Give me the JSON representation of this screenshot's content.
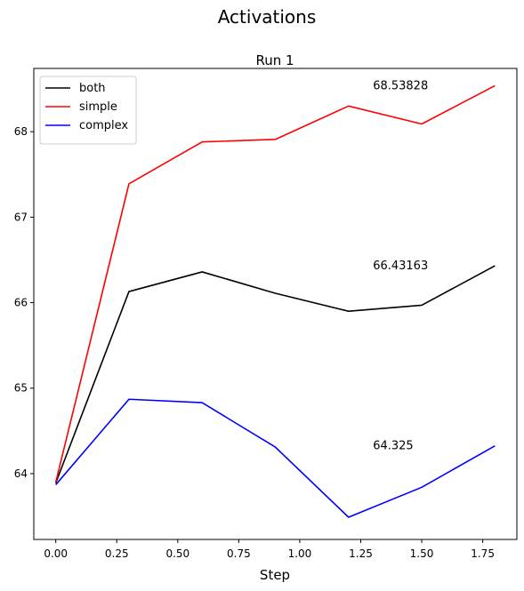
{
  "figure": {
    "suptitle": "Activations"
  },
  "chart_data": {
    "type": "line",
    "title": "Run 1",
    "xlabel": "Step",
    "ylabel": "",
    "x": [
      0.0,
      0.3,
      0.6,
      0.9,
      1.2,
      1.5,
      1.8
    ],
    "xlim": [
      -0.09,
      1.89
    ],
    "ylim": [
      63.23,
      68.74
    ],
    "xticks": [
      0.0,
      0.25,
      0.5,
      0.75,
      1.0,
      1.25,
      1.5,
      1.75
    ],
    "xtick_labels": [
      "0.00",
      "0.25",
      "0.50",
      "0.75",
      "1.00",
      "1.25",
      "1.50",
      "1.75"
    ],
    "yticks": [
      64,
      65,
      66,
      67,
      68
    ],
    "ytick_labels": [
      "64",
      "65",
      "66",
      "67",
      "68"
    ],
    "grid": false,
    "legend_position": "upper-left",
    "series": [
      {
        "name": "both",
        "color": "#000000",
        "values": [
          63.89,
          66.13,
          66.36,
          66.11,
          65.9,
          65.97,
          66.43163
        ]
      },
      {
        "name": "simple",
        "color": "#ff0000",
        "values": [
          63.9,
          67.39,
          67.88,
          67.91,
          68.3,
          68.09,
          68.53828
        ]
      },
      {
        "name": "complex",
        "color": "#0000ff",
        "values": [
          63.87,
          64.87,
          64.83,
          64.31,
          63.49,
          63.84,
          64.325
        ]
      }
    ],
    "annotations": [
      {
        "text": "68.53828",
        "x": 1.3,
        "y": 68.53828
      },
      {
        "text": "66.43163",
        "x": 1.3,
        "y": 66.43163
      },
      {
        "text": "64.325",
        "x": 1.3,
        "y": 64.325
      }
    ]
  }
}
